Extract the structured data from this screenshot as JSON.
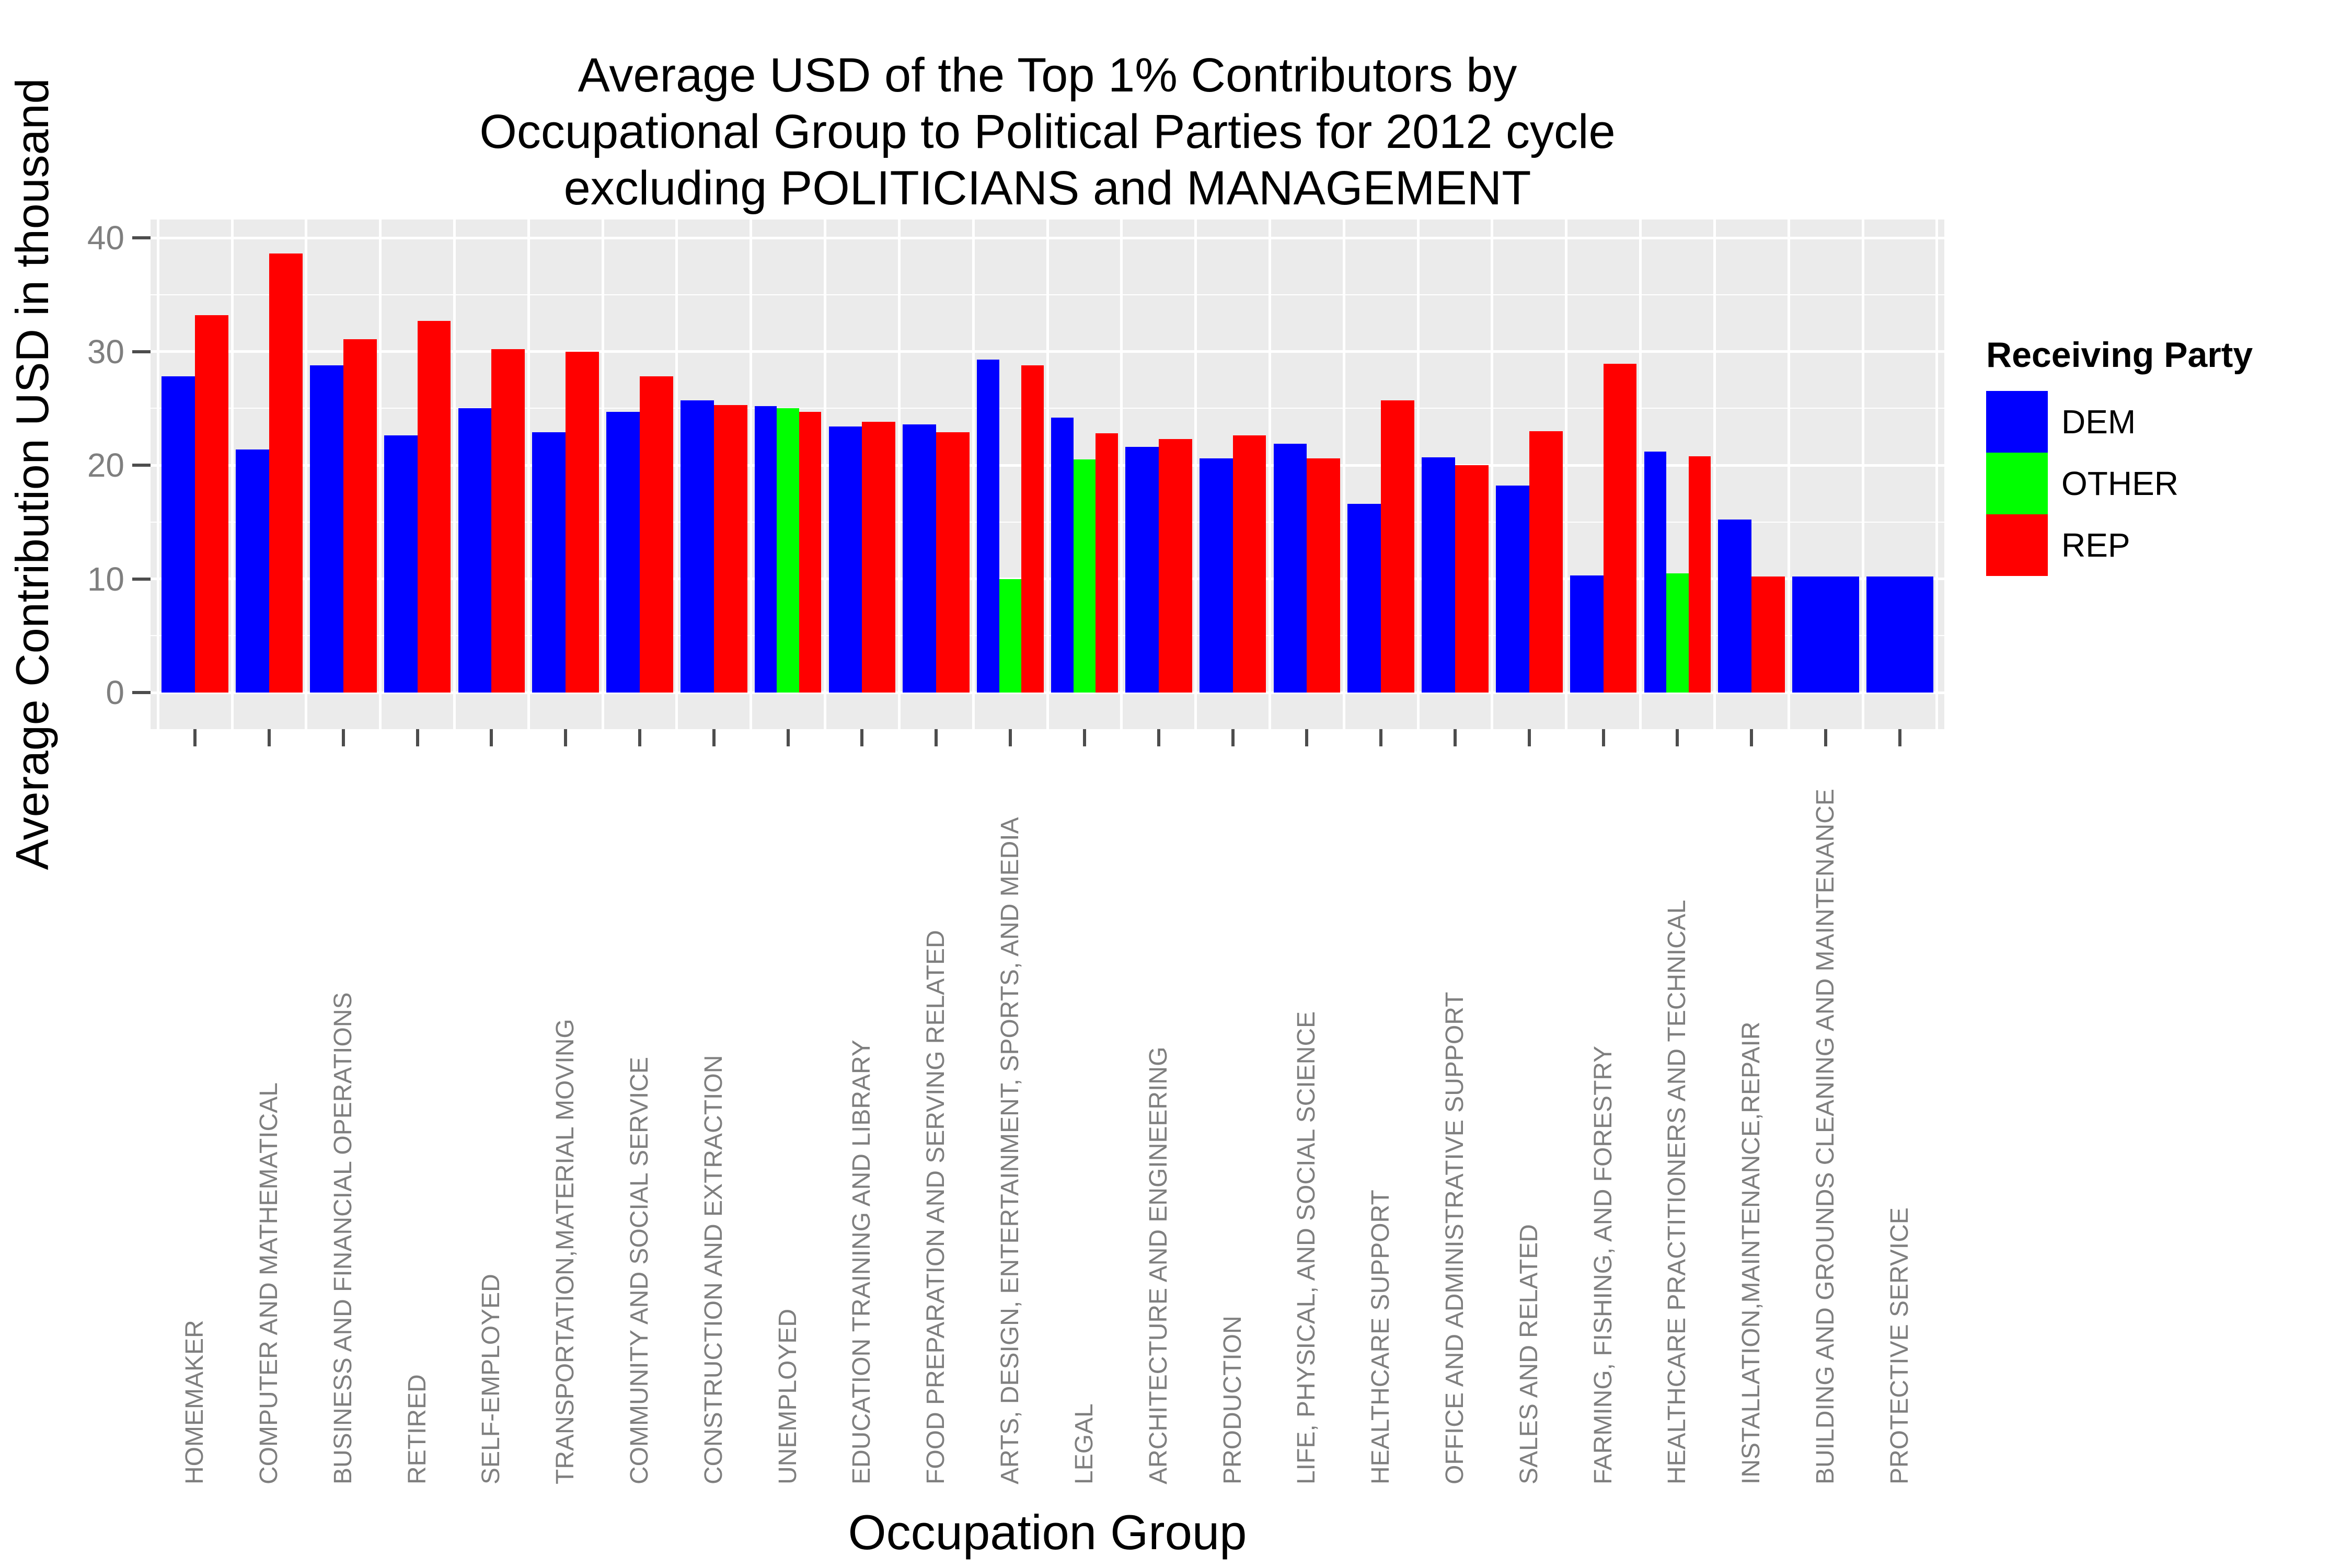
{
  "chart_data": {
    "type": "bar",
    "title_lines": [
      "Average USD of the Top 1% Contributors by",
      "Occupational Group to Political Parties for 2012 cycle",
      "excluding POLITICIANS and MANAGEMENT"
    ],
    "xlabel": "Occupation Group",
    "ylabel": "Average Contribution USD in thousand",
    "ylim": [
      0,
      40
    ],
    "yticks": [
      0,
      10,
      20,
      30,
      40
    ],
    "yticks_minor": [
      5,
      15,
      25,
      35
    ],
    "grid": "on",
    "panel_background": "#EBEBEB",
    "legend": {
      "title": "Receiving Party",
      "position": "right",
      "entries": [
        "DEM",
        "OTHER",
        "REP"
      ]
    },
    "colors": {
      "DEM": "#0000FF",
      "OTHER": "#00FF00",
      "REP": "#FF0000"
    },
    "categories": [
      "HOMEMAKER",
      "COMPUTER AND MATHEMATICAL",
      "BUSINESS AND FINANCIAL OPERATIONS",
      "RETIRED",
      "SELF-EMPLOYED",
      "TRANSPORTATION,MATERIAL MOVING",
      "COMMUNITY AND SOCIAL SERVICE",
      "CONSTRUCTION AND EXTRACTION",
      "UNEMPLOYED",
      "EDUCATION TRAINING AND LIBRARY",
      "FOOD PREPARATION AND SERVING RELATED",
      "ARTS, DESIGN, ENTERTAINMENT, SPORTS, AND MEDIA",
      "LEGAL",
      "ARCHITECTURE AND ENGINEERING",
      "PRODUCTION",
      "LIFE, PHYSICAL, AND SOCIAL SCIENCE",
      "HEALTHCARE SUPPORT",
      "OFFICE AND ADMINISTRATIVE SUPPORT",
      "SALES AND RELATED",
      "FARMING, FISHING, AND FORESTRY",
      "HEALTHCARE PRACTITIONERS AND TECHNICAL",
      "INSTALLATION,MAINTENANCE,REPAIR",
      "BUILDING AND GROUNDS CLEANING AND MAINTENANCE",
      "PROTECTIVE SERVICE"
    ],
    "series": [
      {
        "name": "DEM",
        "values": [
          27.8,
          21.4,
          28.8,
          22.6,
          25.0,
          22.9,
          24.7,
          25.7,
          25.2,
          23.4,
          23.6,
          29.3,
          24.2,
          21.6,
          20.6,
          21.9,
          16.6,
          20.7,
          18.2,
          10.3,
          21.2,
          15.2,
          10.2,
          10.2
        ]
      },
      {
        "name": "OTHER",
        "values": [
          null,
          null,
          null,
          null,
          null,
          null,
          null,
          null,
          25.0,
          null,
          null,
          10.0,
          20.5,
          null,
          null,
          null,
          null,
          null,
          null,
          null,
          10.5,
          null,
          null,
          null
        ]
      },
      {
        "name": "REP",
        "values": [
          33.2,
          38.6,
          31.1,
          32.7,
          30.2,
          30.0,
          27.8,
          25.3,
          24.7,
          23.8,
          22.9,
          28.8,
          22.8,
          22.3,
          22.6,
          20.6,
          25.7,
          20.0,
          23.0,
          28.9,
          20.8,
          10.2,
          null,
          null
        ]
      }
    ]
  }
}
